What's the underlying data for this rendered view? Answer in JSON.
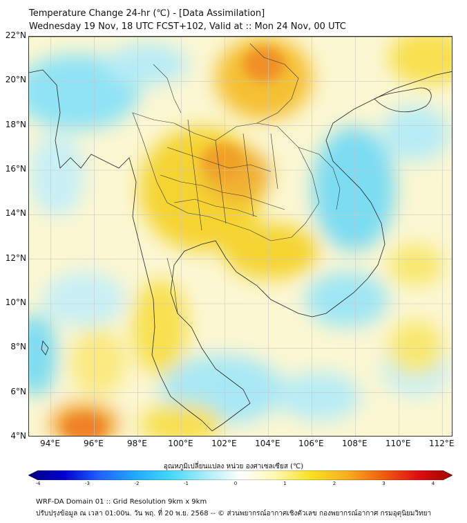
{
  "title": {
    "line1": "Temperature Change 24-hr (℃) - [Data Assimilation]",
    "line2": "Wednesday 19 Nov, 18 UTC FCST+102, Valid at :: Mon 24 Nov, 00 UTC"
  },
  "map": {
    "lat_range": [
      4,
      22
    ],
    "lon_range": [
      93,
      112.5
    ],
    "lat_labels": [
      "22°N",
      "20°N",
      "18°N",
      "16°N",
      "14°N",
      "12°N",
      "10°N",
      "8°N",
      "6°N",
      "4°N"
    ],
    "lon_labels": [
      "94°E",
      "96°E",
      "98°E",
      "100°E",
      "102°E",
      "104°E",
      "106°E",
      "108°E",
      "110°E",
      "112°E"
    ],
    "grid": true,
    "colors": {
      "warm": "#f5d800",
      "hot": "#f0a030",
      "cool": "#66d8f0",
      "neutral": "#fafae0",
      "border": "#222222"
    }
  },
  "colorbar": {
    "title": "อุณหภูมิเปลี่ยนแปลง หน่วย องศาเซลเซียส (℃)",
    "range": [
      -4,
      4
    ],
    "ticks": [
      "-4",
      "-3",
      "-2",
      "-1",
      "0",
      "1",
      "2",
      "3",
      "4"
    ],
    "stops": [
      "#000080",
      "#0000d0",
      "#2060ff",
      "#20a8ff",
      "#40d8f8",
      "#a8ecf8",
      "#ffffff",
      "#fff8b0",
      "#f8e020",
      "#f8b020",
      "#f06010",
      "#e01010",
      "#a00000"
    ]
  },
  "footer": {
    "line1": "WRF-DA Domain 01 :: Grid Resolution 9km x 9km",
    "line2": "ปรับปรุงข้อมูล ณ เวลา 01:00น. วัน พฤ. ที่ 20 พ.ย. 2568 -- © ส่วนพยากรณ์อากาศเชิงตัวเลข กองพยากรณ์อากาศ กรมอุตุนิยมวิทยา"
  }
}
